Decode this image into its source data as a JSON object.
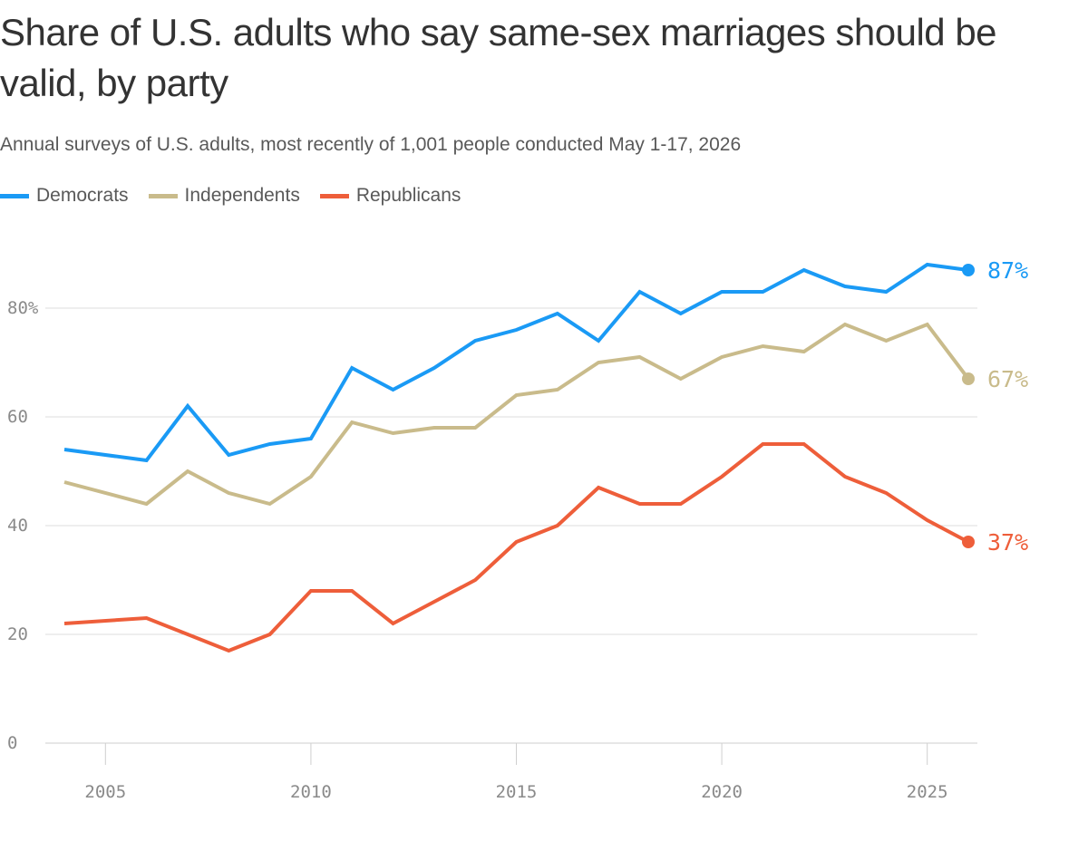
{
  "chart_data": {
    "type": "line",
    "title": "Share of U.S. adults who say same-sex marriages should be valid, by party",
    "subtitle": "Annual surveys of U.S. adults, most recently of 1,001 people conducted May 1-17, 2026",
    "x_range": [
      2003.5,
      2026.2
    ],
    "ylim": [
      0,
      90
    ],
    "y_ticks": [
      0,
      20,
      40,
      60,
      80
    ],
    "y_tick_labels": [
      "0",
      "20",
      "40",
      "60",
      "80%"
    ],
    "x_ticks": [
      2005,
      2010,
      2015,
      2020,
      2025
    ],
    "x_tick_labels": [
      "2005",
      "2010",
      "2015",
      "2020",
      "2025"
    ],
    "grid": "horizontal",
    "legend_position": "top-left",
    "series": [
      {
        "name": "Democrats",
        "color": "#1a9af5",
        "end_label": "87%",
        "points": [
          [
            2004,
            54
          ],
          [
            2006,
            52
          ],
          [
            2007,
            62
          ],
          [
            2008,
            53
          ],
          [
            2009,
            55
          ],
          [
            2010,
            56
          ],
          [
            2011,
            69
          ],
          [
            2012,
            65
          ],
          [
            2013,
            69
          ],
          [
            2014,
            74
          ],
          [
            2015,
            76
          ],
          [
            2016,
            79
          ],
          [
            2017,
            74
          ],
          [
            2018,
            83
          ],
          [
            2019,
            79
          ],
          [
            2020,
            83
          ],
          [
            2021,
            83
          ],
          [
            2022,
            87
          ],
          [
            2023,
            84
          ],
          [
            2024,
            83
          ],
          [
            2025,
            88
          ],
          [
            2026,
            87
          ]
        ]
      },
      {
        "name": "Independents",
        "color": "#c9bb8b",
        "end_label": "67%",
        "points": [
          [
            2004,
            48
          ],
          [
            2006,
            44
          ],
          [
            2007,
            50
          ],
          [
            2008,
            46
          ],
          [
            2009,
            44
          ],
          [
            2010,
            49
          ],
          [
            2011,
            59
          ],
          [
            2012,
            57
          ],
          [
            2013,
            58
          ],
          [
            2014,
            58
          ],
          [
            2015,
            64
          ],
          [
            2016,
            65
          ],
          [
            2017,
            70
          ],
          [
            2018,
            71
          ],
          [
            2019,
            67
          ],
          [
            2020,
            71
          ],
          [
            2021,
            73
          ],
          [
            2022,
            72
          ],
          [
            2023,
            77
          ],
          [
            2024,
            74
          ],
          [
            2025,
            77
          ],
          [
            2026,
            67
          ]
        ]
      },
      {
        "name": "Republicans",
        "color": "#ee5e3a",
        "end_label": "37%",
        "points": [
          [
            2004,
            22
          ],
          [
            2006,
            23
          ],
          [
            2007,
            20
          ],
          [
            2008,
            17
          ],
          [
            2009,
            20
          ],
          [
            2010,
            28
          ],
          [
            2011,
            28
          ],
          [
            2012,
            22
          ],
          [
            2013,
            26
          ],
          [
            2014,
            30
          ],
          [
            2015,
            37
          ],
          [
            2016,
            40
          ],
          [
            2017,
            47
          ],
          [
            2018,
            44
          ],
          [
            2019,
            44
          ],
          [
            2020,
            49
          ],
          [
            2021,
            55
          ],
          [
            2022,
            55
          ],
          [
            2023,
            49
          ],
          [
            2024,
            46
          ],
          [
            2025,
            41
          ],
          [
            2026,
            37
          ]
        ]
      }
    ]
  }
}
